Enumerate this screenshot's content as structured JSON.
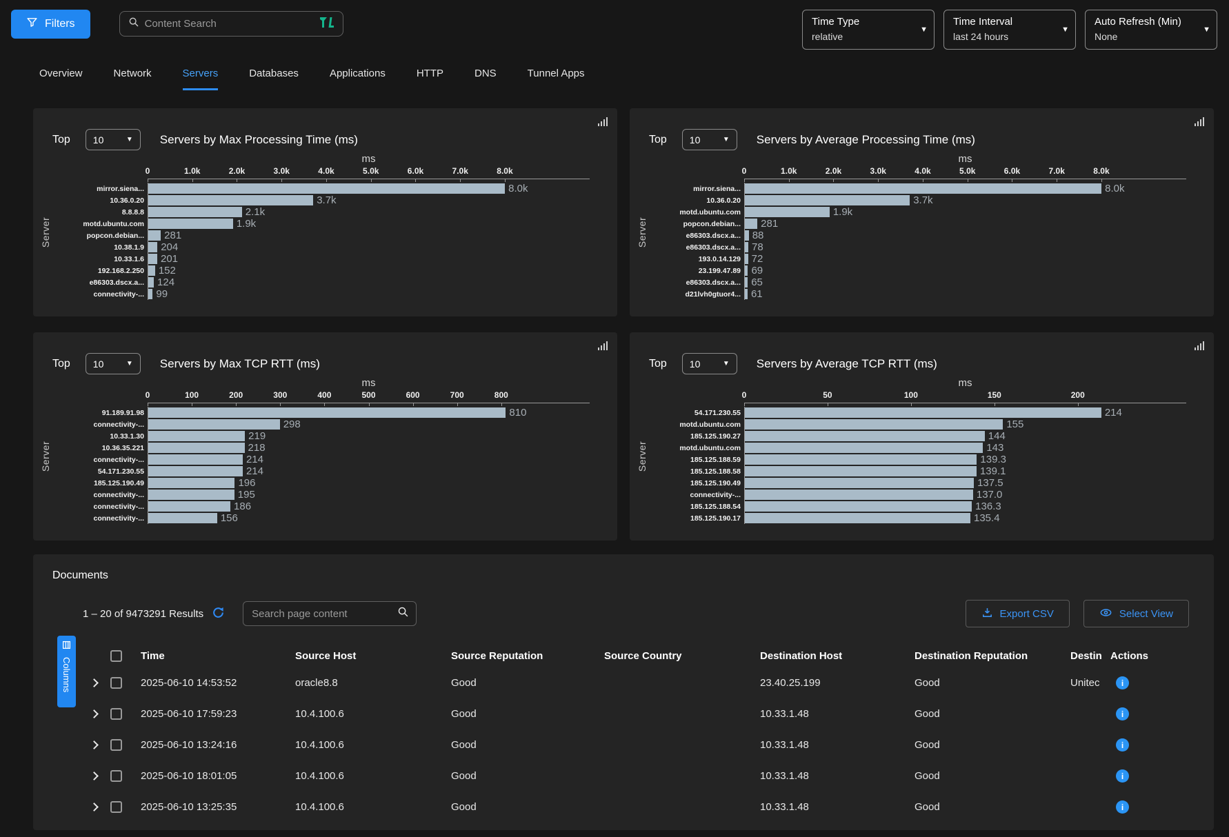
{
  "header": {
    "filters_button": "Filters",
    "search_placeholder": "Content Search",
    "dropdowns": [
      {
        "label": "Time Type",
        "value": "relative"
      },
      {
        "label": "Time Interval",
        "value": "last 24 hours"
      },
      {
        "label": "Auto Refresh (Min)",
        "value": "None"
      }
    ]
  },
  "tabs": [
    {
      "label": "Overview",
      "active": false
    },
    {
      "label": "Network",
      "active": false
    },
    {
      "label": "Servers",
      "active": true
    },
    {
      "label": "Databases",
      "active": false
    },
    {
      "label": "Applications",
      "active": false
    },
    {
      "label": "HTTP",
      "active": false
    },
    {
      "label": "DNS",
      "active": false
    },
    {
      "label": "Tunnel Apps",
      "active": false
    }
  ],
  "colors": {
    "primary_blue": "#2187f1",
    "link_blue": "#3b94f6",
    "bar_fill": "#a9bbc8",
    "logo_teal": "#14b58c"
  },
  "charts": [
    {
      "top_label": "Top",
      "top_value": "10",
      "title": "Servers by Max Processing Time (ms)",
      "unit": "ms",
      "ylabel": "Server",
      "type": "bar",
      "axis_max": 9900,
      "ticks": [
        {
          "v": 0,
          "t": "0"
        },
        {
          "v": 1000,
          "t": "1.0k"
        },
        {
          "v": 2000,
          "t": "2.0k"
        },
        {
          "v": 3000,
          "t": "3.0k"
        },
        {
          "v": 4000,
          "t": "4.0k"
        },
        {
          "v": 5000,
          "t": "5.0k"
        },
        {
          "v": 6000,
          "t": "6.0k"
        },
        {
          "v": 7000,
          "t": "7.0k"
        },
        {
          "v": 8000,
          "t": "8.0k"
        }
      ],
      "rows": [
        {
          "label": "mirror.siena...",
          "value": 8000,
          "display": "8.0k"
        },
        {
          "label": "10.36.0.20",
          "value": 3700,
          "display": "3.7k"
        },
        {
          "label": "8.8.8.8",
          "value": 2100,
          "display": "2.1k"
        },
        {
          "label": "motd.ubuntu.com",
          "value": 1900,
          "display": "1.9k"
        },
        {
          "label": "popcon.debian...",
          "value": 281,
          "display": "281"
        },
        {
          "label": "10.38.1.9",
          "value": 204,
          "display": "204"
        },
        {
          "label": "10.33.1.6",
          "value": 201,
          "display": "201"
        },
        {
          "label": "192.168.2.250",
          "value": 152,
          "display": "152"
        },
        {
          "label": "e86303.dscx.a...",
          "value": 124,
          "display": "124"
        },
        {
          "label": "connectivity-...",
          "value": 99,
          "display": "99"
        }
      ]
    },
    {
      "top_label": "Top",
      "top_value": "10",
      "title": "Servers by Average Processing Time (ms)",
      "unit": "ms",
      "ylabel": "Server",
      "type": "bar",
      "axis_max": 9900,
      "ticks": [
        {
          "v": 0,
          "t": "0"
        },
        {
          "v": 1000,
          "t": "1.0k"
        },
        {
          "v": 2000,
          "t": "2.0k"
        },
        {
          "v": 3000,
          "t": "3.0k"
        },
        {
          "v": 4000,
          "t": "4.0k"
        },
        {
          "v": 5000,
          "t": "5.0k"
        },
        {
          "v": 6000,
          "t": "6.0k"
        },
        {
          "v": 7000,
          "t": "7.0k"
        },
        {
          "v": 8000,
          "t": "8.0k"
        }
      ],
      "rows": [
        {
          "label": "mirror.siena...",
          "value": 8000,
          "display": "8.0k"
        },
        {
          "label": "10.36.0.20",
          "value": 3700,
          "display": "3.7k"
        },
        {
          "label": "motd.ubuntu.com",
          "value": 1900,
          "display": "1.9k"
        },
        {
          "label": "popcon.debian...",
          "value": 281,
          "display": "281"
        },
        {
          "label": "e86303.dscx.a...",
          "value": 88,
          "display": "88"
        },
        {
          "label": "e86303.dscx.a...",
          "value": 78,
          "display": "78"
        },
        {
          "label": "193.0.14.129",
          "value": 72,
          "display": "72"
        },
        {
          "label": "23.199.47.89",
          "value": 69,
          "display": "69"
        },
        {
          "label": "e86303.dscx.a...",
          "value": 65,
          "display": "65"
        },
        {
          "label": "d21lvh0gtuor4...",
          "value": 61,
          "display": "61"
        }
      ]
    },
    {
      "top_label": "Top",
      "top_value": "10",
      "title": "Servers by Max TCP RTT (ms)",
      "unit": "ms",
      "ylabel": "Server",
      "type": "bar",
      "axis_max": 1000,
      "ticks": [
        {
          "v": 0,
          "t": "0"
        },
        {
          "v": 100,
          "t": "100"
        },
        {
          "v": 200,
          "t": "200"
        },
        {
          "v": 300,
          "t": "300"
        },
        {
          "v": 400,
          "t": "400"
        },
        {
          "v": 500,
          "t": "500"
        },
        {
          "v": 600,
          "t": "600"
        },
        {
          "v": 700,
          "t": "700"
        },
        {
          "v": 800,
          "t": "800"
        }
      ],
      "rows": [
        {
          "label": "91.189.91.98",
          "value": 810,
          "display": "810"
        },
        {
          "label": "connectivity-...",
          "value": 298,
          "display": "298"
        },
        {
          "label": "10.33.1.30",
          "value": 219,
          "display": "219"
        },
        {
          "label": "10.36.35.221",
          "value": 218,
          "display": "218"
        },
        {
          "label": "connectivity-...",
          "value": 214,
          "display": "214"
        },
        {
          "label": "54.171.230.55",
          "value": 214,
          "display": "214"
        },
        {
          "label": "185.125.190.49",
          "value": 196,
          "display": "196"
        },
        {
          "label": "connectivity-...",
          "value": 195,
          "display": "195"
        },
        {
          "label": "connectivity-...",
          "value": 186,
          "display": "186"
        },
        {
          "label": "connectivity-...",
          "value": 156,
          "display": "156"
        }
      ]
    },
    {
      "top_label": "Top",
      "top_value": "10",
      "title": "Servers by Average TCP RTT (ms)",
      "unit": "ms",
      "ylabel": "Server",
      "type": "bar",
      "axis_max": 265,
      "ticks": [
        {
          "v": 0,
          "t": "0"
        },
        {
          "v": 50,
          "t": "50"
        },
        {
          "v": 100,
          "t": "100"
        },
        {
          "v": 150,
          "t": "150"
        },
        {
          "v": 200,
          "t": "200"
        }
      ],
      "rows": [
        {
          "label": "54.171.230.55",
          "value": 214,
          "display": "214"
        },
        {
          "label": "motd.ubuntu.com",
          "value": 155,
          "display": "155"
        },
        {
          "label": "185.125.190.27",
          "value": 144,
          "display": "144"
        },
        {
          "label": "motd.ubuntu.com",
          "value": 143,
          "display": "143"
        },
        {
          "label": "185.125.188.59",
          "value": 139.3,
          "display": "139.3"
        },
        {
          "label": "185.125.188.58",
          "value": 139.1,
          "display": "139.1"
        },
        {
          "label": "185.125.190.49",
          "value": 137.5,
          "display": "137.5"
        },
        {
          "label": "connectivity-...",
          "value": 137.0,
          "display": "137.0"
        },
        {
          "label": "185.125.188.54",
          "value": 136.3,
          "display": "136.3"
        },
        {
          "label": "185.125.190.17",
          "value": 135.4,
          "display": "135.4"
        }
      ]
    }
  ],
  "documents": {
    "title": "Documents",
    "results_summary": "1 – 20 of 9473291 Results",
    "page_search_placeholder": "Search page content",
    "export_csv_label": "Export CSV",
    "select_view_label": "Select View",
    "columns_button_label": "Columns",
    "table": {
      "columns": [
        "Time",
        "Source Host",
        "Source Reputation",
        "Source Country",
        "Destination Host",
        "Destination Reputation",
        "Destin",
        "Actions"
      ],
      "rows": [
        {
          "time": "2025-06-10 14:53:52",
          "source_host": "oracle8.8",
          "source_reputation": "Good",
          "source_country": "",
          "destination_host": "23.40.25.199",
          "destination_reputation": "Good",
          "destination_country": "Unitec"
        },
        {
          "time": "2025-06-10 17:59:23",
          "source_host": "10.4.100.6",
          "source_reputation": "Good",
          "source_country": "",
          "destination_host": "10.33.1.48",
          "destination_reputation": "Good",
          "destination_country": ""
        },
        {
          "time": "2025-06-10 13:24:16",
          "source_host": "10.4.100.6",
          "source_reputation": "Good",
          "source_country": "",
          "destination_host": "10.33.1.48",
          "destination_reputation": "Good",
          "destination_country": ""
        },
        {
          "time": "2025-06-10 18:01:05",
          "source_host": "10.4.100.6",
          "source_reputation": "Good",
          "source_country": "",
          "destination_host": "10.33.1.48",
          "destination_reputation": "Good",
          "destination_country": ""
        },
        {
          "time": "2025-06-10 13:25:35",
          "source_host": "10.4.100.6",
          "source_reputation": "Good",
          "source_country": "",
          "destination_host": "10.33.1.48",
          "destination_reputation": "Good",
          "destination_country": ""
        }
      ]
    }
  }
}
